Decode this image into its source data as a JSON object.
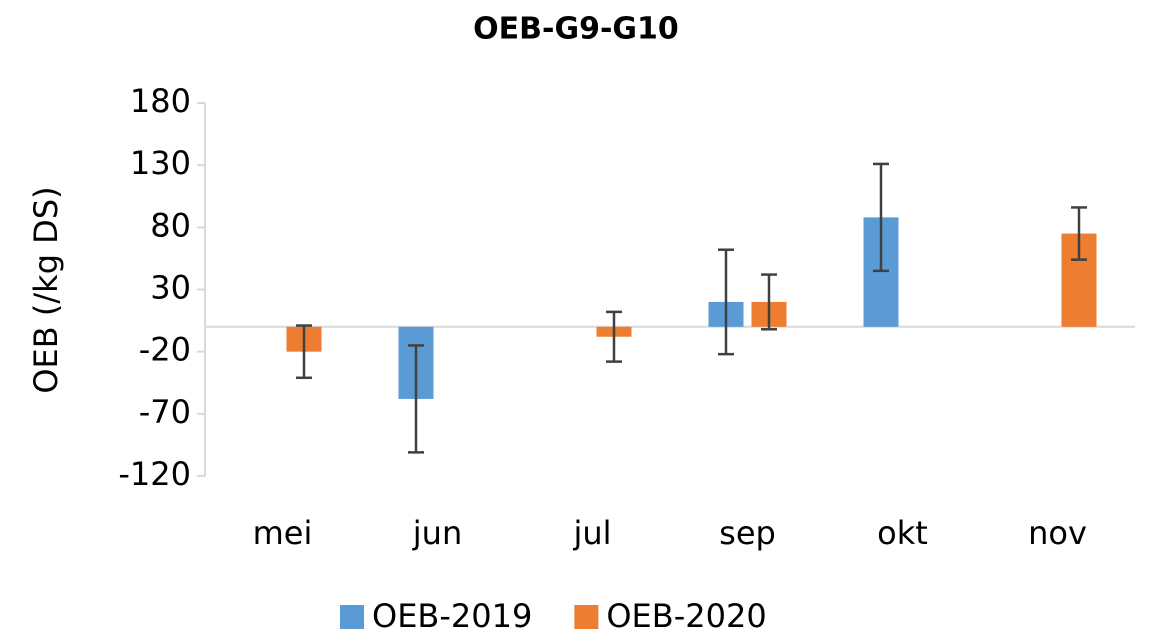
{
  "chart_data": {
    "type": "bar",
    "title": "OEB-G9-G10",
    "y_label": "OEB (/kg DS)",
    "categories": [
      "mei",
      "jun",
      "jul",
      "sep",
      "okt",
      "nov"
    ],
    "series": [
      {
        "name": "OEB-2019",
        "color": "#5b9bd5",
        "values": [
          null,
          -58,
          null,
          20,
          88,
          null
        ],
        "errors": [
          null,
          43,
          null,
          42,
          43,
          null
        ]
      },
      {
        "name": "OEB-2020",
        "color": "#ed7d31",
        "values": [
          -20,
          null,
          -8,
          20,
          null,
          75
        ],
        "errors": [
          21,
          null,
          20,
          22,
          null,
          21
        ]
      }
    ],
    "ylim": [
      -120,
      180
    ],
    "yticks": [
      -120,
      -70,
      -20,
      30,
      80,
      130,
      180
    ],
    "grid": false,
    "legend": "bottom"
  }
}
